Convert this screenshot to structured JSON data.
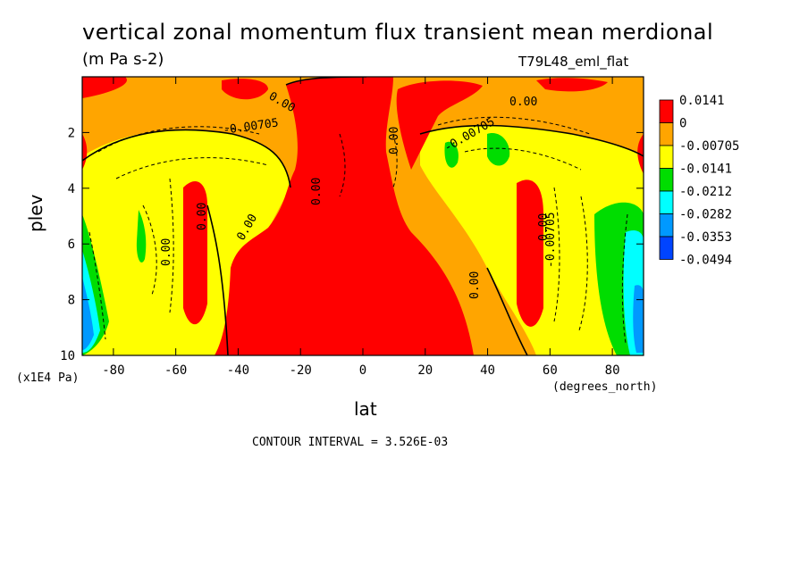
{
  "chart_data": {
    "type": "heatmap",
    "title": "vertical zonal momentum flux transient mean merdional",
    "units": "(m Pa s-2)",
    "model_label": "T79L48_eml_flat",
    "xlabel": "lat",
    "ylabel": "plev",
    "x_units": "(degrees_north)",
    "y_units": "(x1E4 Pa)",
    "x_ticks": [
      -80,
      -60,
      -40,
      -20,
      0,
      20,
      40,
      60,
      80
    ],
    "y_ticks": [
      2,
      4,
      6,
      8,
      10
    ],
    "xlim": [
      -90,
      90
    ],
    "ylim": [
      10,
      0
    ],
    "legend": {
      "placement": "right",
      "labels": [
        "0.0141",
        "0",
        "-0.00705",
        "-0.0141",
        "-0.0212",
        "-0.0282",
        "-0.0353",
        "-0.0494"
      ],
      "colors": [
        "#ff0000",
        "#ffa500",
        "#ffff00",
        "#00dd00",
        "#00ffff",
        "#0099ff",
        "#0044ff"
      ]
    },
    "contour_labels": [
      "0.00",
      "-0.00705",
      "0.00",
      "-0.00705",
      "0.00",
      "0.00",
      "0.00",
      "0.00",
      "0.00",
      "0.00",
      "0.00",
      "-0.00705",
      "-0.00705",
      "0.00",
      "0.00",
      "0.00"
    ],
    "contour_interval_text": "CONTOUR INTERVAL = 3.526E-03"
  }
}
